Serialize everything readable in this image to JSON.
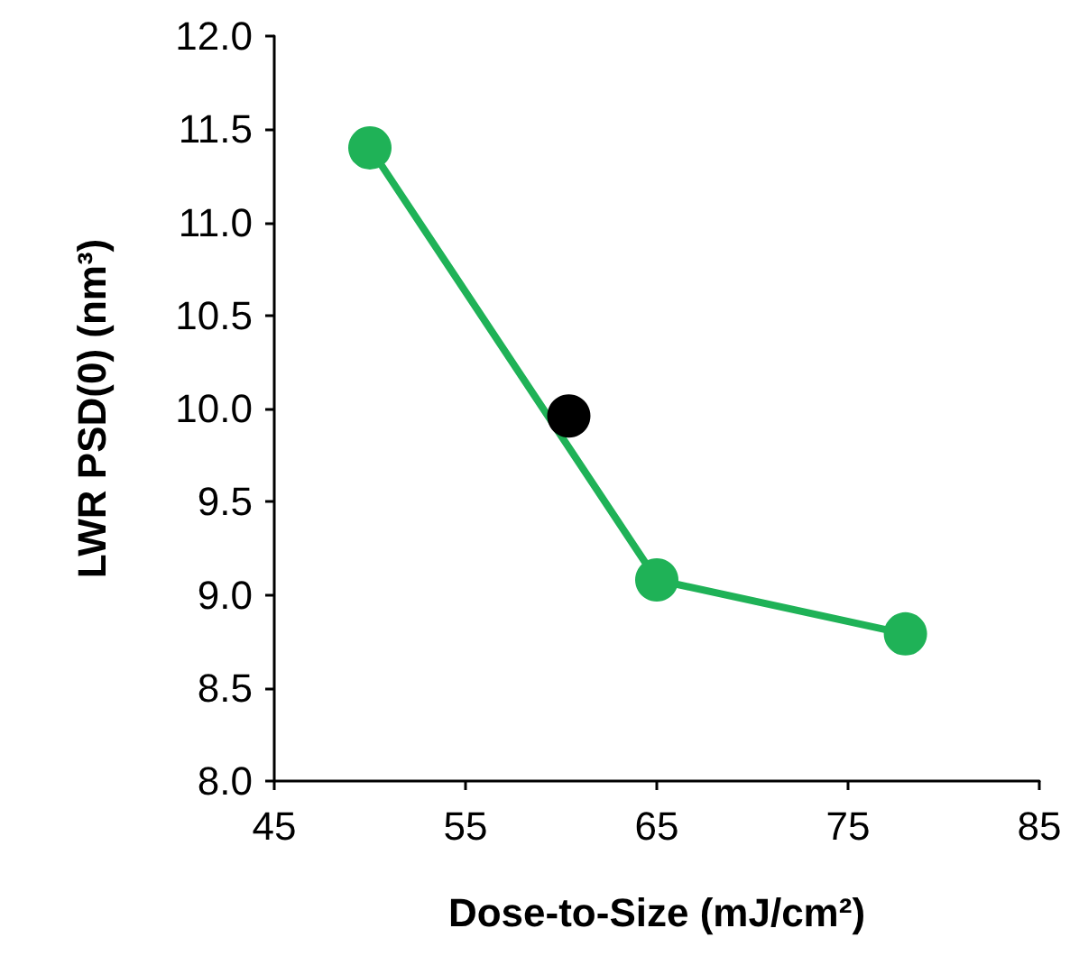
{
  "chart_data": {
    "type": "line",
    "xlabel": "Dose-to-Size (mJ/cm²)",
    "ylabel": "LWR PSD(0) (nm³)",
    "series": [
      {
        "color": "#1fb257",
        "x": [
          50,
          65,
          78
        ],
        "values": [
          11.4,
          9.08,
          8.79
        ]
      },
      {
        "type": "scatter",
        "color": "#000000",
        "x": [
          60.4
        ],
        "values": [
          9.96
        ]
      }
    ],
    "xlim": [
      45,
      85
    ],
    "xticks": [
      45,
      55,
      65,
      75,
      85
    ],
    "ylim": [
      8,
      12
    ],
    "yticks": [
      {
        "value": 8,
        "label": "8.0"
      },
      8.5,
      {
        "value": 9,
        "label": "9.0"
      },
      9.5,
      {
        "value": 10,
        "label": "10.0"
      },
      10.5,
      {
        "value": 11,
        "label": "11.0"
      },
      11.5,
      {
        "value": 12,
        "label": "12.0"
      }
    ],
    "grid": false,
    "marker": "circle",
    "line_style": "solid"
  }
}
